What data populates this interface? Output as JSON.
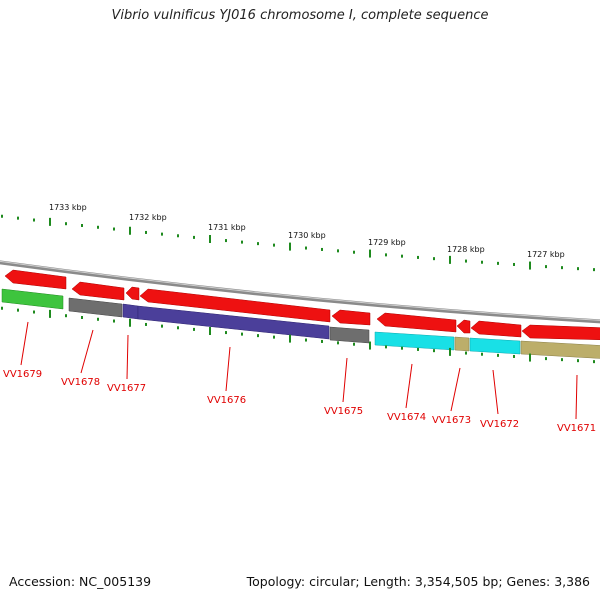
{
  "title": "Vibrio vulnificus YJ016 chromosome I, complete sequence",
  "footer": {
    "accession": "Accession: NC_005139",
    "summary": "Topology: circular; Length: 3,354,505 bp; Genes: 3,386"
  },
  "scale": {
    "labels": [
      "1733 kbp",
      "1732 kbp",
      "1731 kbp",
      "1730 kbp",
      "1729 kbp",
      "1728 kbp",
      "1727 kbp"
    ]
  },
  "colors": {
    "red": "#ee1111",
    "green": "#3ec43e",
    "gray": "#6e6e6e",
    "purple": "#4b3f9a",
    "cyan": "#19e0e6",
    "olive": "#bcae6a",
    "tick": "#1e8a1e",
    "backbone": "#8a8a8a",
    "label": "#e00000"
  },
  "genes": [
    {
      "id": "VV1679",
      "label": "VV1679"
    },
    {
      "id": "VV1678",
      "label": "VV1678"
    },
    {
      "id": "VV1677",
      "label": "VV1677"
    },
    {
      "id": "VV1676",
      "label": "VV1676"
    },
    {
      "id": "VV1675",
      "label": "VV1675"
    },
    {
      "id": "VV1674",
      "label": "VV1674"
    },
    {
      "id": "VV1673",
      "label": "VV1673"
    },
    {
      "id": "VV1672",
      "label": "VV1672"
    },
    {
      "id": "VV1671",
      "label": "VV1671"
    }
  ]
}
